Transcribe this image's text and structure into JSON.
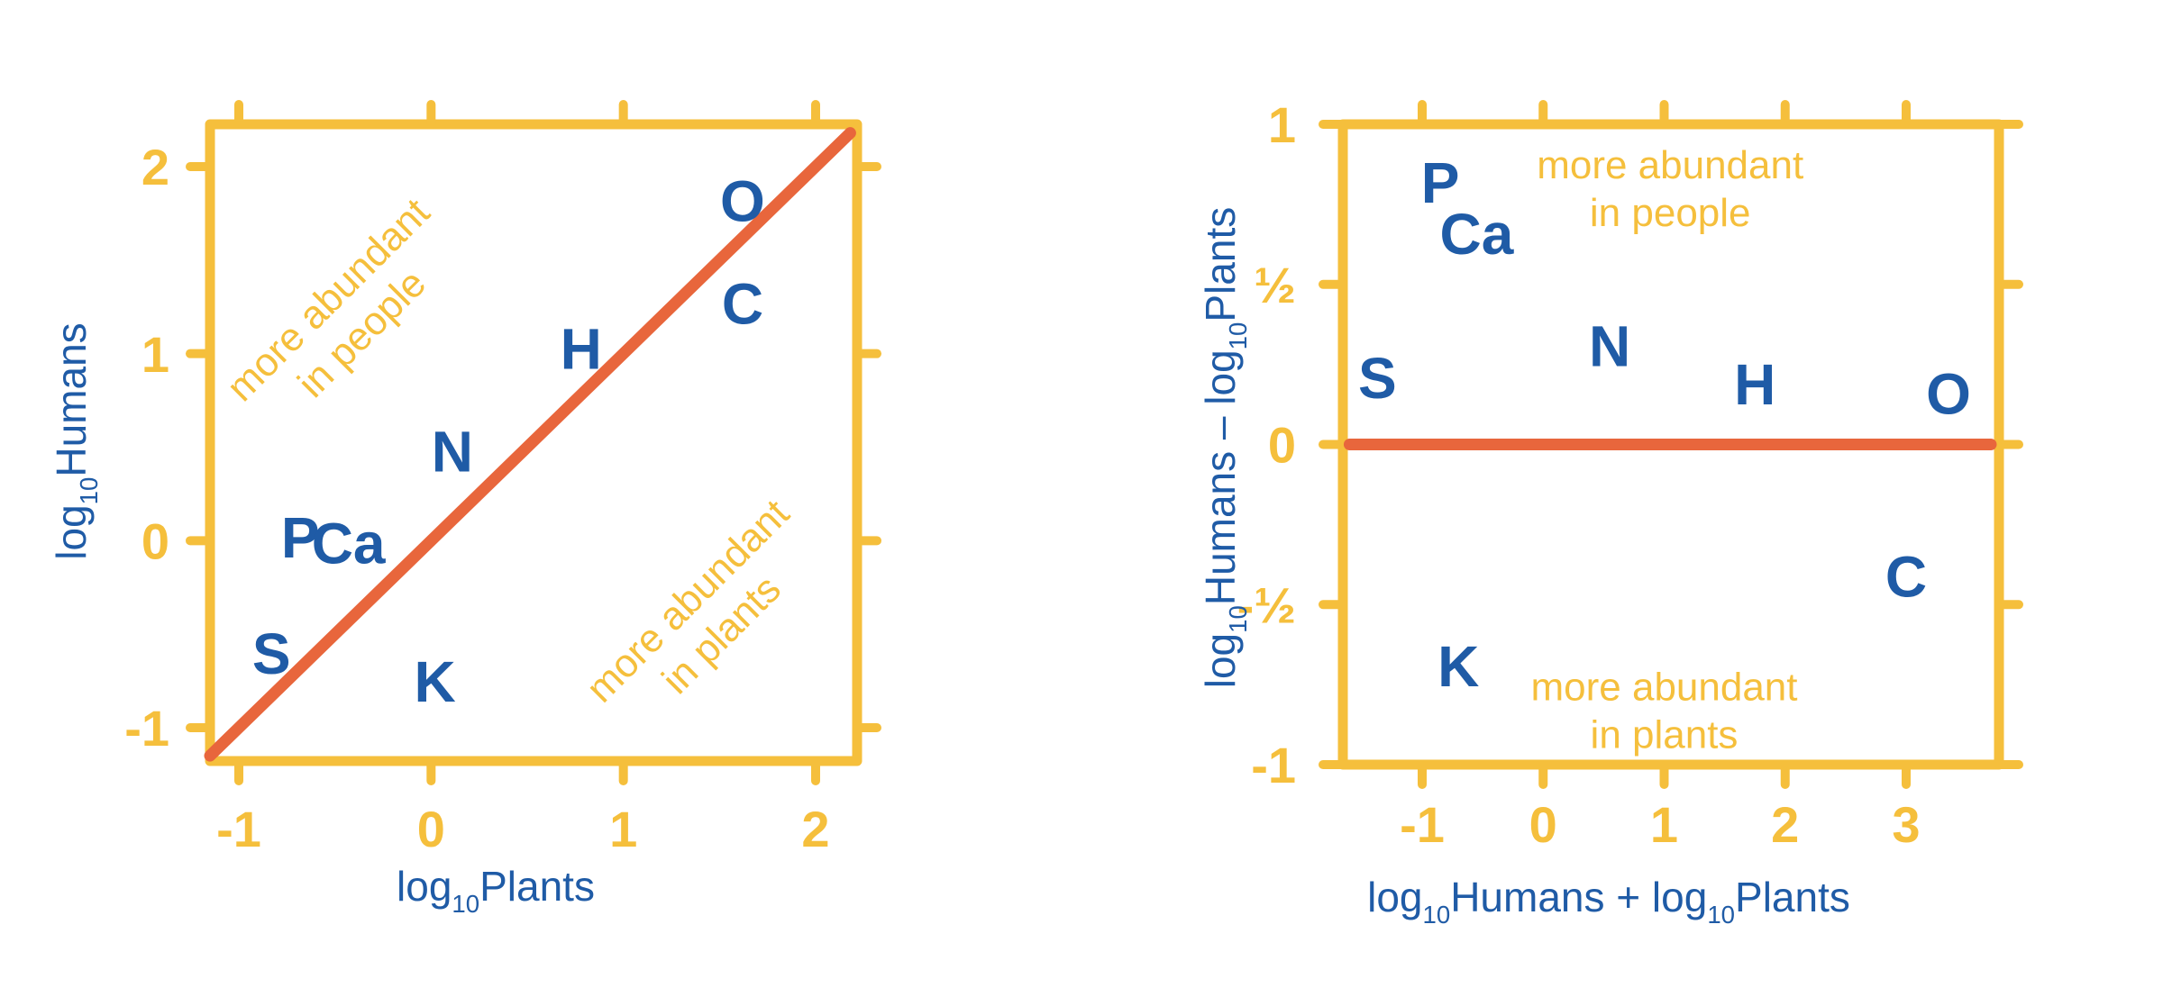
{
  "colors": {
    "frame": "#F5BF3C",
    "tick_label": "#F5BF3C",
    "axis_label": "#1F5BA6",
    "point": "#1F5BA6",
    "line": "#E8663C",
    "annotation": "#F5BF3C"
  },
  "chart_data": [
    {
      "type": "scatter",
      "xlabel": {
        "prefix": "log",
        "sub": "10",
        "rest": "Plants"
      },
      "ylabel": {
        "prefix": "log",
        "sub": "10",
        "rest": "Humans"
      },
      "xlim": [
        -1.2,
        2.2
      ],
      "ylim": [
        -1.2,
        2.2
      ],
      "xticks": [
        -1,
        0,
        1,
        2
      ],
      "yticks": [
        -1,
        0,
        1,
        2
      ],
      "xtick_labels": [
        "-1",
        "0",
        "1",
        "2"
      ],
      "ytick_labels": [
        "-1",
        "0",
        "1",
        "2"
      ],
      "points": [
        {
          "label": "O",
          "x": 1.62,
          "y": 1.82
        },
        {
          "label": "C",
          "x": 1.62,
          "y": 1.27
        },
        {
          "label": "H",
          "x": 0.78,
          "y": 1.03
        },
        {
          "label": "N",
          "x": 0.11,
          "y": 0.48
        },
        {
          "label": "P",
          "x": -0.68,
          "y": 0.02
        },
        {
          "label": "Ca",
          "x": -0.43,
          "y": -0.01
        },
        {
          "label": "S",
          "x": -0.83,
          "y": -0.6
        },
        {
          "label": "K",
          "x": 0.02,
          "y": -0.75
        }
      ],
      "reference_line": {
        "from": [
          -1.15,
          -1.15
        ],
        "to": [
          2.18,
          2.18
        ]
      },
      "annotations": [
        {
          "lines": [
            "more abundant",
            "in people"
          ],
          "x": -0.45,
          "y": 1.2,
          "rotate": -45
        },
        {
          "lines": [
            "more abundant",
            "in plants"
          ],
          "x": 1.42,
          "y": -0.41,
          "rotate": -45
        }
      ]
    },
    {
      "type": "scatter",
      "xlabel": {
        "parts": [
          {
            "t": "log",
            "sub": false
          },
          {
            "t": "10",
            "sub": true
          },
          {
            "t": "Humans + log",
            "sub": false
          },
          {
            "t": "10",
            "sub": true
          },
          {
            "t": "Plants",
            "sub": false
          }
        ]
      },
      "ylabel": {
        "parts": [
          {
            "t": "log",
            "sub": false
          },
          {
            "t": "10",
            "sub": true
          },
          {
            "t": "Humans – log",
            "sub": false
          },
          {
            "t": "10",
            "sub": true
          },
          {
            "t": "Plants",
            "sub": false
          }
        ]
      },
      "xlim": [
        -1.6,
        3.7
      ],
      "ylim": [
        -1,
        1
      ],
      "xticks": [
        -1,
        0,
        1,
        2,
        3
      ],
      "yticks": [
        -1,
        -0.5,
        0,
        0.5,
        1
      ],
      "xtick_labels": [
        "-1",
        "0",
        "1",
        "2",
        "3"
      ],
      "ytick_labels": [
        "-1",
        "-½",
        "0",
        "½",
        "1"
      ],
      "points": [
        {
          "label": "P",
          "x": -0.85,
          "y": 0.82
        },
        {
          "label": "Ca",
          "x": -0.55,
          "y": 0.66
        },
        {
          "label": "S",
          "x": -1.37,
          "y": 0.21
        },
        {
          "label": "N",
          "x": 0.55,
          "y": 0.31
        },
        {
          "label": "H",
          "x": 1.75,
          "y": 0.19
        },
        {
          "label": "O",
          "x": 3.35,
          "y": 0.16
        },
        {
          "label": "C",
          "x": 3.0,
          "y": -0.41
        },
        {
          "label": "K",
          "x": -0.7,
          "y": -0.69
        }
      ],
      "reference_line": {
        "from": [
          -1.6,
          0
        ],
        "to": [
          3.7,
          0
        ]
      },
      "annotations": [
        {
          "lines": [
            "more abundant",
            "in people"
          ],
          "x": 1.05,
          "y": 0.8,
          "rotate": 0
        },
        {
          "lines": [
            "more abundant",
            "in plants"
          ],
          "x": 1.0,
          "y": -0.83,
          "rotate": 0
        }
      ]
    }
  ]
}
